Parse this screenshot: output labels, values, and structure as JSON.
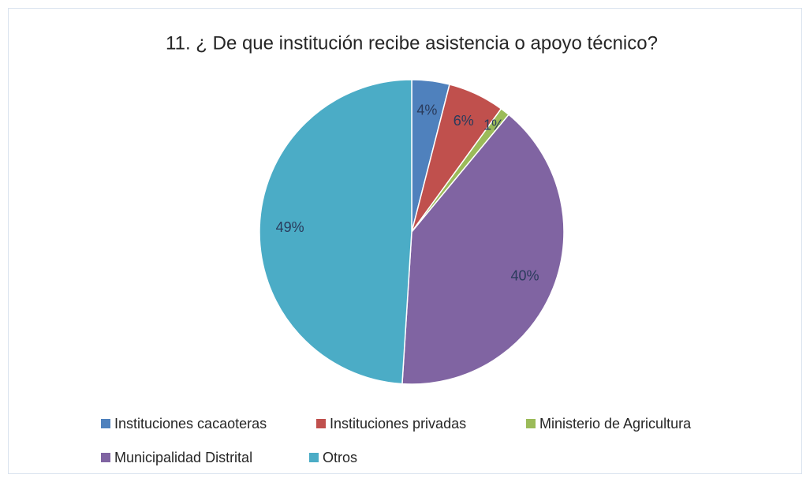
{
  "chart_data": {
    "type": "pie",
    "title": "11. ¿ De que institución recibe asistencia o apoyo técnico?",
    "categories": [
      "Instituciones cacaoteras",
      "Instituciones privadas",
      "Ministerio de Agricultura",
      "Municipalidad Distrital",
      "Otros"
    ],
    "values": [
      4,
      6,
      1,
      40,
      49
    ],
    "value_labels": [
      "4%",
      "6%",
      "1%",
      "40%",
      "49%"
    ],
    "colors": [
      "#4f81bd",
      "#c0504d",
      "#9bbb59",
      "#8064a2",
      "#4bacc6"
    ],
    "legend": "bottom"
  }
}
